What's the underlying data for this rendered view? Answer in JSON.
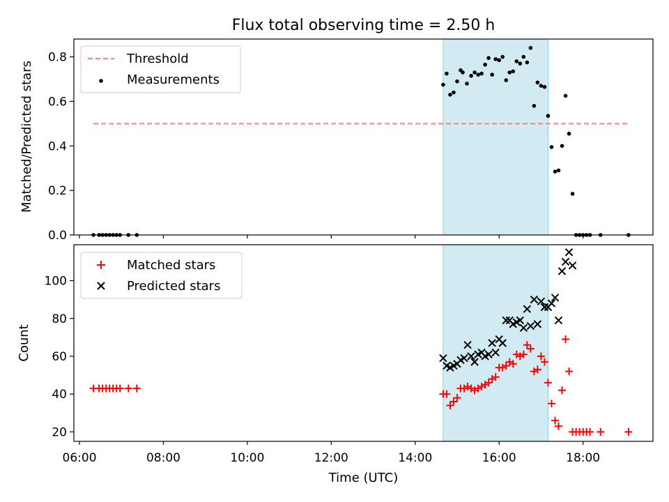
{
  "chart_data": [
    {
      "type": "scatter",
      "title": "Flux total observing time = 2.50 h",
      "xlabel": "",
      "ylabel": "Matched/Predicted stars",
      "xlim": [
        "05:52",
        "19:40"
      ],
      "ylim": [
        0,
        0.88
      ],
      "yticks": [
        "0.0",
        "0.2",
        "0.4",
        "0.6",
        "0.8"
      ],
      "grid": false,
      "legend_position": "top-left",
      "shaded_interval": {
        "start": "14:40",
        "end": "17:10",
        "color": "#add8e6"
      },
      "threshold": {
        "name": "Threshold",
        "y": 0.5,
        "x_start": "06:20",
        "x_end": "19:05",
        "color": "#ff7f7f"
      },
      "series": [
        {
          "name": "Measurements",
          "color": "#000000",
          "marker": "dot",
          "points": [
            [
              "06:20",
              0
            ],
            [
              "06:28",
              0
            ],
            [
              "06:33",
              0
            ],
            [
              "06:38",
              0
            ],
            [
              "06:43",
              0
            ],
            [
              "06:48",
              0
            ],
            [
              "06:53",
              0
            ],
            [
              "06:58",
              0
            ],
            [
              "07:10",
              0
            ],
            [
              "07:22",
              0
            ],
            [
              "14:40",
              0.675
            ],
            [
              "14:45",
              0.725
            ],
            [
              "14:50",
              0.63
            ],
            [
              "14:55",
              0.64
            ],
            [
              "15:00",
              0.69
            ],
            [
              "15:05",
              0.74
            ],
            [
              "15:08",
              0.73
            ],
            [
              "15:14",
              0.68
            ],
            [
              "15:20",
              0.715
            ],
            [
              "15:25",
              0.73
            ],
            [
              "15:30",
              0.72
            ],
            [
              "15:35",
              0.725
            ],
            [
              "15:40",
              0.765
            ],
            [
              "15:45",
              0.795
            ],
            [
              "15:50",
              0.72
            ],
            [
              "15:55",
              0.79
            ],
            [
              "16:00",
              0.785
            ],
            [
              "16:05",
              0.8
            ],
            [
              "16:10",
              0.695
            ],
            [
              "16:15",
              0.73
            ],
            [
              "16:20",
              0.735
            ],
            [
              "16:25",
              0.78
            ],
            [
              "16:30",
              0.77
            ],
            [
              "16:35",
              0.8
            ],
            [
              "16:40",
              0.775
            ],
            [
              "16:45",
              0.84
            ],
            [
              "16:50",
              0.58
            ],
            [
              "16:55",
              0.685
            ],
            [
              "17:00",
              0.67
            ],
            [
              "17:05",
              0.665
            ],
            [
              "17:10",
              0.535
            ],
            [
              "17:15",
              0.395
            ],
            [
              "17:20",
              0.285
            ],
            [
              "17:25",
              0.29
            ],
            [
              "17:30",
              0.4
            ],
            [
              "17:35",
              0.625
            ],
            [
              "17:40",
              0.455
            ],
            [
              "17:45",
              0.185
            ],
            [
              "17:50",
              0
            ],
            [
              "17:55",
              0
            ],
            [
              "18:00",
              0
            ],
            [
              "18:05",
              0
            ],
            [
              "18:10",
              0
            ],
            [
              "18:25",
              0
            ],
            [
              "19:05",
              0
            ]
          ]
        }
      ]
    },
    {
      "type": "scatter",
      "title": "",
      "xlabel": "Time (UTC)",
      "ylabel": "Count",
      "xlim": [
        "05:52",
        "19:40"
      ],
      "ylim": [
        15,
        119
      ],
      "yticks": [
        "20",
        "40",
        "60",
        "80",
        "100"
      ],
      "xticks": [
        "06:00",
        "08:00",
        "10:00",
        "12:00",
        "14:00",
        "16:00",
        "18:00"
      ],
      "grid": false,
      "legend_position": "top-left",
      "shaded_interval": {
        "start": "14:40",
        "end": "17:10",
        "color": "#add8e6"
      },
      "series": [
        {
          "name": "Matched stars",
          "color": "#ff0000",
          "marker": "plus",
          "points": [
            [
              "06:20",
              43
            ],
            [
              "06:28",
              43
            ],
            [
              "06:33",
              43
            ],
            [
              "06:38",
              43
            ],
            [
              "06:43",
              43
            ],
            [
              "06:48",
              43
            ],
            [
              "06:53",
              43
            ],
            [
              "06:58",
              43
            ],
            [
              "07:10",
              43
            ],
            [
              "07:22",
              43
            ],
            [
              "14:40",
              40
            ],
            [
              "14:45",
              40
            ],
            [
              "14:50",
              34
            ],
            [
              "14:55",
              36
            ],
            [
              "15:00",
              38
            ],
            [
              "15:05",
              43
            ],
            [
              "15:10",
              43
            ],
            [
              "15:15",
              44
            ],
            [
              "15:20",
              43
            ],
            [
              "15:25",
              42
            ],
            [
              "15:30",
              43
            ],
            [
              "15:35",
              44
            ],
            [
              "15:40",
              45
            ],
            [
              "15:45",
              46
            ],
            [
              "15:50",
              48
            ],
            [
              "15:55",
              49
            ],
            [
              "16:00",
              54
            ],
            [
              "16:05",
              54
            ],
            [
              "16:10",
              55
            ],
            [
              "16:15",
              57
            ],
            [
              "16:20",
              56
            ],
            [
              "16:25",
              61
            ],
            [
              "16:30",
              60
            ],
            [
              "16:35",
              61
            ],
            [
              "16:40",
              66
            ],
            [
              "16:45",
              64
            ],
            [
              "16:50",
              52
            ],
            [
              "16:55",
              53
            ],
            [
              "17:00",
              60
            ],
            [
              "17:05",
              57
            ],
            [
              "17:10",
              46
            ],
            [
              "17:15",
              35
            ],
            [
              "17:20",
              26
            ],
            [
              "17:25",
              23
            ],
            [
              "17:30",
              42
            ],
            [
              "17:35",
              69
            ],
            [
              "17:40",
              52
            ],
            [
              "17:45",
              20
            ],
            [
              "17:50",
              20
            ],
            [
              "17:55",
              20
            ],
            [
              "18:00",
              20
            ],
            [
              "18:05",
              20
            ],
            [
              "18:10",
              20
            ],
            [
              "18:25",
              20
            ],
            [
              "19:05",
              20
            ]
          ]
        },
        {
          "name": "Predicted stars",
          "color": "#000000",
          "marker": "x",
          "points": [
            [
              "14:40",
              59
            ],
            [
              "14:45",
              55
            ],
            [
              "14:50",
              54
            ],
            [
              "14:55",
              55
            ],
            [
              "15:00",
              56
            ],
            [
              "15:05",
              58
            ],
            [
              "15:10",
              59
            ],
            [
              "15:15",
              66
            ],
            [
              "15:20",
              60
            ],
            [
              "15:25",
              57
            ],
            [
              "15:30",
              61
            ],
            [
              "15:35",
              62
            ],
            [
              "15:40",
              60
            ],
            [
              "15:45",
              61
            ],
            [
              "15:50",
              67
            ],
            [
              "15:55",
              62
            ],
            [
              "16:00",
              69
            ],
            [
              "16:05",
              67
            ],
            [
              "16:10",
              79
            ],
            [
              "16:15",
              79
            ],
            [
              "16:20",
              77
            ],
            [
              "16:25",
              78
            ],
            [
              "16:30",
              79
            ],
            [
              "16:35",
              75
            ],
            [
              "16:40",
              85
            ],
            [
              "16:45",
              76
            ],
            [
              "16:50",
              90
            ],
            [
              "16:55",
              77
            ],
            [
              "17:00",
              89
            ],
            [
              "17:05",
              86
            ],
            [
              "17:10",
              86
            ],
            [
              "17:15",
              88
            ],
            [
              "17:20",
              91
            ],
            [
              "17:25",
              79
            ],
            [
              "17:30",
              105
            ],
            [
              "17:35",
              110
            ],
            [
              "17:40",
              115
            ],
            [
              "17:45",
              108
            ]
          ]
        }
      ]
    }
  ]
}
